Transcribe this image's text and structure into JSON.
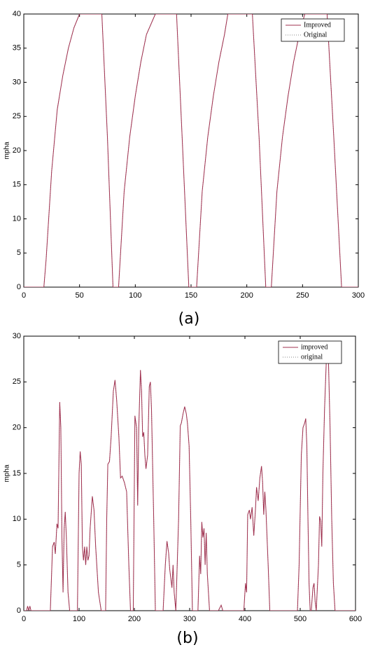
{
  "chart_data": [
    {
      "type": "line",
      "caption": "(a)",
      "ylabel": "mpha",
      "x": [
        0,
        18,
        20,
        25,
        30,
        35,
        40,
        45,
        50,
        70,
        75,
        80,
        85,
        90,
        95,
        100,
        105,
        110,
        118,
        137,
        142,
        148,
        155,
        160,
        165,
        170,
        175,
        180,
        183,
        205,
        211,
        217,
        222,
        227,
        232,
        237,
        242,
        247,
        252,
        272,
        278,
        285,
        300
      ],
      "series": [
        {
          "name": "Original",
          "color": "#8a8a8a",
          "dash": "dotted",
          "values": [
            0,
            0,
            4,
            17,
            26,
            31,
            35,
            38,
            40,
            40,
            22,
            0,
            0,
            14,
            22,
            28,
            33,
            37,
            40,
            40,
            22,
            0,
            0,
            14,
            22,
            28,
            33,
            37,
            40,
            40,
            22,
            0,
            0,
            14,
            22,
            28,
            33,
            37,
            40,
            40,
            22,
            0,
            0
          ]
        },
        {
          "name": "Improved",
          "color": "#a0304f",
          "dash": "solid",
          "values": [
            0,
            0,
            4,
            17,
            26,
            31,
            35,
            38,
            40,
            40,
            22,
            0,
            0,
            14,
            22,
            28,
            33,
            37,
            40,
            40,
            22,
            0,
            0,
            14,
            22,
            28,
            33,
            37,
            40,
            40,
            22,
            0,
            0,
            14,
            22,
            28,
            33,
            37,
            40,
            40,
            22,
            0,
            0
          ]
        }
      ],
      "legend_order": [
        1,
        0
      ],
      "legend": "upper right",
      "xlim": [
        0,
        300
      ],
      "ylim": [
        0,
        40
      ],
      "xticks": [
        0,
        50,
        100,
        150,
        200,
        250,
        300
      ],
      "yticks": [
        0,
        5,
        10,
        15,
        20,
        25,
        30,
        35,
        40
      ]
    },
    {
      "type": "line",
      "caption": "(b)",
      "ylabel": "mpha",
      "x": [
        0,
        5,
        7,
        9,
        11,
        13,
        48,
        52,
        55,
        57,
        60,
        62,
        65,
        67,
        69,
        71,
        73,
        75,
        77,
        80,
        83,
        97,
        100,
        102,
        104,
        106,
        108,
        110,
        112,
        114,
        116,
        118,
        120,
        124,
        127,
        130,
        135,
        140,
        148,
        150,
        152,
        155,
        158,
        162,
        165,
        168,
        172,
        175,
        178,
        182,
        186,
        190,
        193,
        198,
        201,
        204,
        206,
        208,
        211,
        213,
        215,
        217,
        219,
        221,
        224,
        227,
        229,
        231,
        235,
        238,
        252,
        256,
        259,
        262,
        264,
        266,
        268,
        270,
        272,
        275,
        280,
        283,
        285,
        288,
        291,
        294,
        296,
        299,
        302,
        305,
        315,
        318,
        320,
        322,
        324,
        326,
        328,
        330,
        332,
        334,
        336,
        352,
        357,
        360,
        398,
        401,
        403,
        405,
        408,
        410,
        413,
        416,
        419,
        421,
        424,
        427,
        430,
        432,
        434,
        436,
        438,
        442,
        445,
        495,
        498,
        502,
        505,
        508,
        510,
        512,
        514,
        516,
        518,
        520,
        523,
        525,
        527,
        529,
        533,
        535,
        537,
        539,
        541,
        544,
        547,
        549,
        551,
        554,
        557,
        560,
        563,
        600
      ],
      "series": [
        {
          "name": "original",
          "color": "#8a8a8a",
          "dash": "dotted",
          "values": [
            0,
            0,
            0.5,
            0,
            0.5,
            0,
            0,
            7,
            7.5,
            6.2,
            9.5,
            9,
            22.8,
            20,
            8,
            2,
            9,
            10.8,
            8,
            2,
            0,
            0,
            15,
            17.4,
            16,
            7,
            5.5,
            7,
            5,
            7,
            5.5,
            6,
            9,
            12.5,
            11,
            7,
            2,
            0,
            0,
            10,
            16,
            16.3,
            19,
            24,
            25.2,
            23,
            19,
            14.5,
            14.7,
            14,
            13,
            5,
            0,
            0,
            21.3,
            20,
            11.5,
            20,
            26.3,
            24,
            19,
            19.5,
            17,
            15.5,
            17,
            24.5,
            25,
            22,
            10,
            0,
            0,
            5,
            7.6,
            6.3,
            4.5,
            3.5,
            2.5,
            5,
            2,
            0,
            10,
            20.2,
            20.5,
            21.5,
            22.3,
            21.5,
            20.5,
            18,
            10,
            0,
            0,
            6,
            4,
            9.7,
            8,
            9,
            5,
            8.5,
            4,
            2,
            0,
            0,
            0.6,
            0,
            0,
            3,
            2,
            10.5,
            11,
            10,
            11.3,
            8.2,
            11,
            13.5,
            12,
            14.5,
            15.8,
            14,
            10.5,
            13,
            11,
            5,
            0,
            0,
            5,
            17,
            20,
            20.5,
            21,
            18,
            10,
            3,
            0,
            0,
            2.5,
            3,
            1,
            0,
            5,
            10.3,
            9.8,
            7,
            15,
            22,
            27,
            28,
            27.5,
            20,
            10,
            3,
            0,
            0
          ]
        },
        {
          "name": "improved",
          "color": "#a0304f",
          "dash": "solid",
          "values": [
            0,
            0,
            0.5,
            0,
            0.5,
            0,
            0,
            7,
            7.5,
            6.2,
            9.5,
            9,
            22.8,
            20,
            8,
            2,
            9,
            10.8,
            8,
            2,
            0,
            0,
            15,
            17.4,
            16,
            7,
            5.5,
            7,
            5,
            7,
            5.5,
            6,
            9,
            12.5,
            11,
            7,
            2,
            0,
            0,
            10,
            16,
            16.3,
            19,
            24,
            25.2,
            23,
            19,
            14.5,
            14.7,
            14,
            13,
            5,
            0,
            0,
            21.3,
            20,
            11.5,
            20,
            26.3,
            24,
            19,
            19.5,
            17,
            15.5,
            17,
            24.5,
            25,
            22,
            10,
            0,
            0,
            5,
            7.6,
            6.3,
            4.5,
            3.5,
            2.5,
            5,
            2,
            0,
            10,
            20.2,
            20.5,
            21.5,
            22.3,
            21.5,
            20.5,
            18,
            10,
            0,
            0,
            6,
            4,
            9.7,
            8,
            9,
            5,
            8.5,
            4,
            2,
            0,
            0,
            0.6,
            0,
            0,
            3,
            2,
            10.5,
            11,
            10,
            11.3,
            8.2,
            11,
            13.5,
            12,
            14.5,
            15.8,
            14,
            10.5,
            13,
            11,
            5,
            0,
            0,
            5,
            17,
            20,
            20.5,
            21,
            18,
            10,
            3,
            0,
            0,
            2.5,
            3,
            1,
            0,
            5,
            10.3,
            9.8,
            7,
            15,
            22,
            27,
            28,
            27.5,
            20,
            10,
            3,
            0,
            0
          ]
        }
      ],
      "legend_order": [
        1,
        0
      ],
      "legend": "upper right",
      "xlim": [
        0,
        600
      ],
      "ylim": [
        0,
        30
      ],
      "xticks": [
        0,
        100,
        200,
        300,
        400,
        500,
        600
      ],
      "yticks": [
        0,
        5,
        10,
        15,
        20,
        25,
        30
      ]
    }
  ]
}
